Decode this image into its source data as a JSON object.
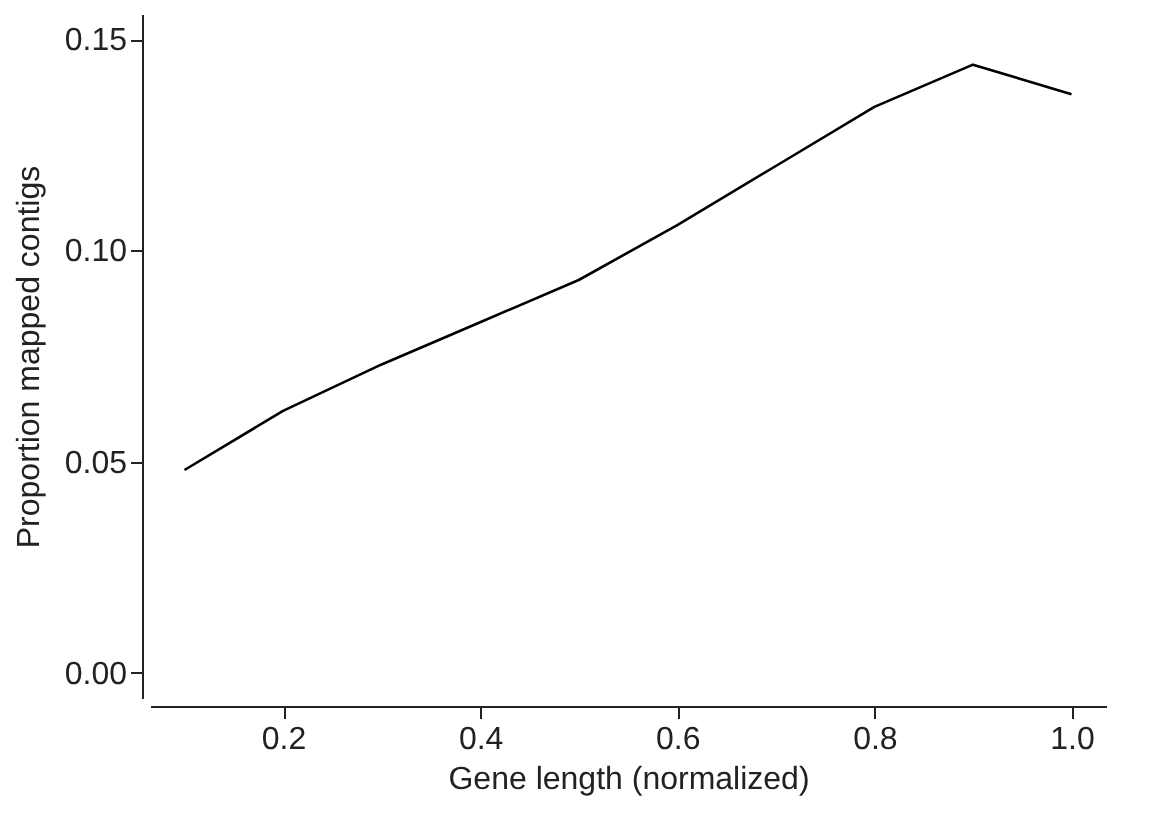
{
  "chart_data": {
    "type": "line",
    "xlabel": "Gene length (normalized)",
    "ylabel": "Proportion mapped contigs",
    "x": [
      0.1,
      0.2,
      0.3,
      0.4,
      0.5,
      0.6,
      0.7,
      0.8,
      0.9,
      1.0
    ],
    "series": [
      {
        "color": "#000000",
        "values": [
          0.048,
          0.062,
          0.073,
          0.083,
          0.093,
          0.106,
          0.12,
          0.134,
          0.144,
          0.137
        ]
      }
    ],
    "xlim": [
      0.065,
      1.035
    ],
    "xticks": [
      0.2,
      0.4,
      0.6,
      0.8,
      {
        "value": 1.0,
        "label": "1.0"
      }
    ],
    "ylim": [
      -0.006,
      0.156
    ],
    "yticks": [
      {
        "value": 0,
        "label": "0.00"
      },
      {
        "value": 0.05,
        "label": "0.05"
      },
      {
        "value": 0.1,
        "label": "0.10"
      },
      {
        "value": 0.15,
        "label": "0.15"
      }
    ],
    "grid": false,
    "marker": "none",
    "line_style": "solid"
  }
}
